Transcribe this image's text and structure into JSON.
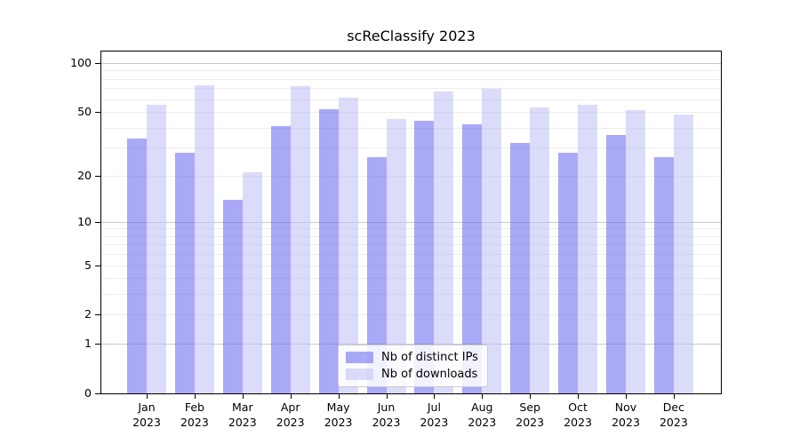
{
  "title": "scReClassify 2023",
  "legend": {
    "items": [
      {
        "label": "Nb of distinct IPs",
        "color": "#7070f2",
        "alpha": 0.6
      },
      {
        "label": "Nb of downloads",
        "color": "#c3c3f7",
        "alpha": 0.6
      }
    ]
  },
  "chart_data": {
    "type": "bar",
    "title": "scReClassify 2023",
    "categories": [
      "Jan",
      "Feb",
      "Mar",
      "Apr",
      "May",
      "Jun",
      "Jul",
      "Aug",
      "Sep",
      "Oct",
      "Nov",
      "Dec"
    ],
    "year": "2023",
    "series": [
      {
        "name": "Nb of distinct IPs",
        "slug": "distinct-ips",
        "color": "#7070f2",
        "alpha": 0.6,
        "values": [
          34,
          28,
          14,
          41,
          52,
          26,
          44,
          42,
          32,
          28,
          36,
          26
        ]
      },
      {
        "name": "Nb of downloads",
        "slug": "downloads",
        "color": "#c3c3f7",
        "alpha": 0.6,
        "values": [
          55,
          73,
          21,
          72,
          61,
          45,
          67,
          69,
          53,
          55,
          51,
          48
        ]
      }
    ],
    "xlabel": "",
    "ylabel": "",
    "y_scale": "log1p",
    "ylim": [
      0,
      117.5
    ],
    "y_ticks": [
      0,
      1,
      2,
      5,
      10,
      20,
      50,
      100
    ],
    "y_gridlines": [
      1,
      2,
      3,
      4,
      5,
      6,
      7,
      8,
      9,
      10,
      20,
      30,
      40,
      50,
      60,
      70,
      80,
      90,
      100
    ],
    "y_major_gridlines": [
      1,
      10,
      100
    ],
    "grid": true,
    "legend_position": "lower center"
  }
}
